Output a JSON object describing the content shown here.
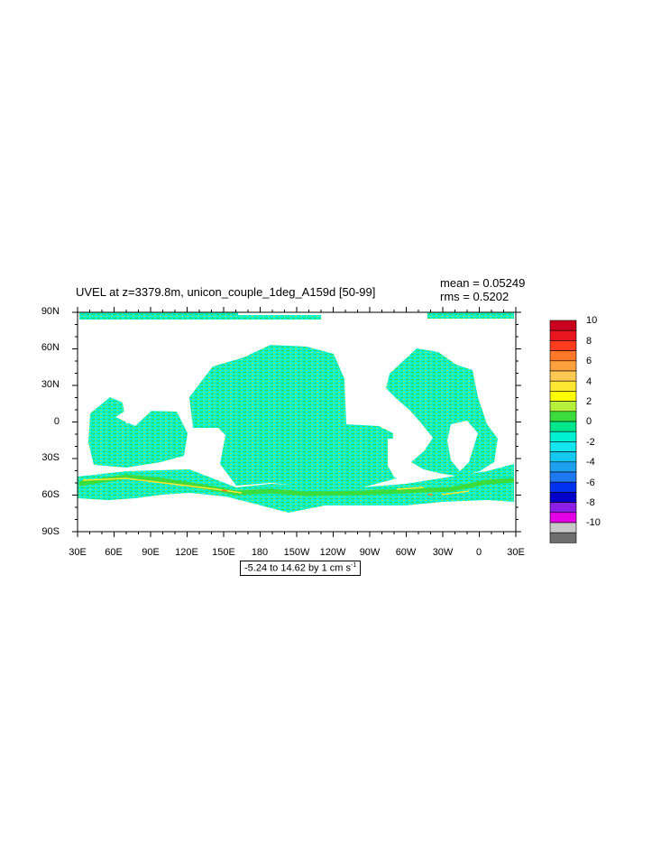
{
  "plot": {
    "title": "UVEL at z=3379.8m, unicon_couple_1deg_A159d [50-99]",
    "mean_text": "mean = 0.05249",
    "rms_text": "rms = 0.5202",
    "range_text": "-5.24 to 14.62 by 1 cm s",
    "range_unit_exp": "-1"
  },
  "map": {
    "lat_labels": [
      "90N",
      "60N",
      "30N",
      "0",
      "30S",
      "60S",
      "90S"
    ],
    "lon_labels": [
      "30E",
      "60E",
      "90E",
      "120E",
      "150E",
      "180",
      "150W",
      "120W",
      "90W",
      "60W",
      "30W",
      "0",
      "30E"
    ]
  },
  "colorbar": {
    "labels": [
      "10",
      "8",
      "6",
      "4",
      "2",
      "0",
      "-2",
      "-4",
      "-6",
      "-8",
      "-10"
    ],
    "colors": [
      "#c8001e",
      "#e8141e",
      "#ff3c1e",
      "#ff7828",
      "#ffa03c",
      "#ffc850",
      "#ffe632",
      "#ffff00",
      "#b4f03c",
      "#3cdc3c",
      "#00e68c",
      "#00f0d2",
      "#14e6f0",
      "#14c8f0",
      "#1ea0f0",
      "#1e78f0",
      "#0032f0",
      "#0000c8",
      "#8c1ee6",
      "#e600e6",
      "#c8c8c8",
      "#6e6e6e"
    ]
  },
  "field_colors": {
    "main": "#00f0d2",
    "positive": "#3cdc3c",
    "light_positive": "#b4f03c",
    "strong_positive": "#ffe632",
    "stronger_positive": "#ff7828"
  }
}
